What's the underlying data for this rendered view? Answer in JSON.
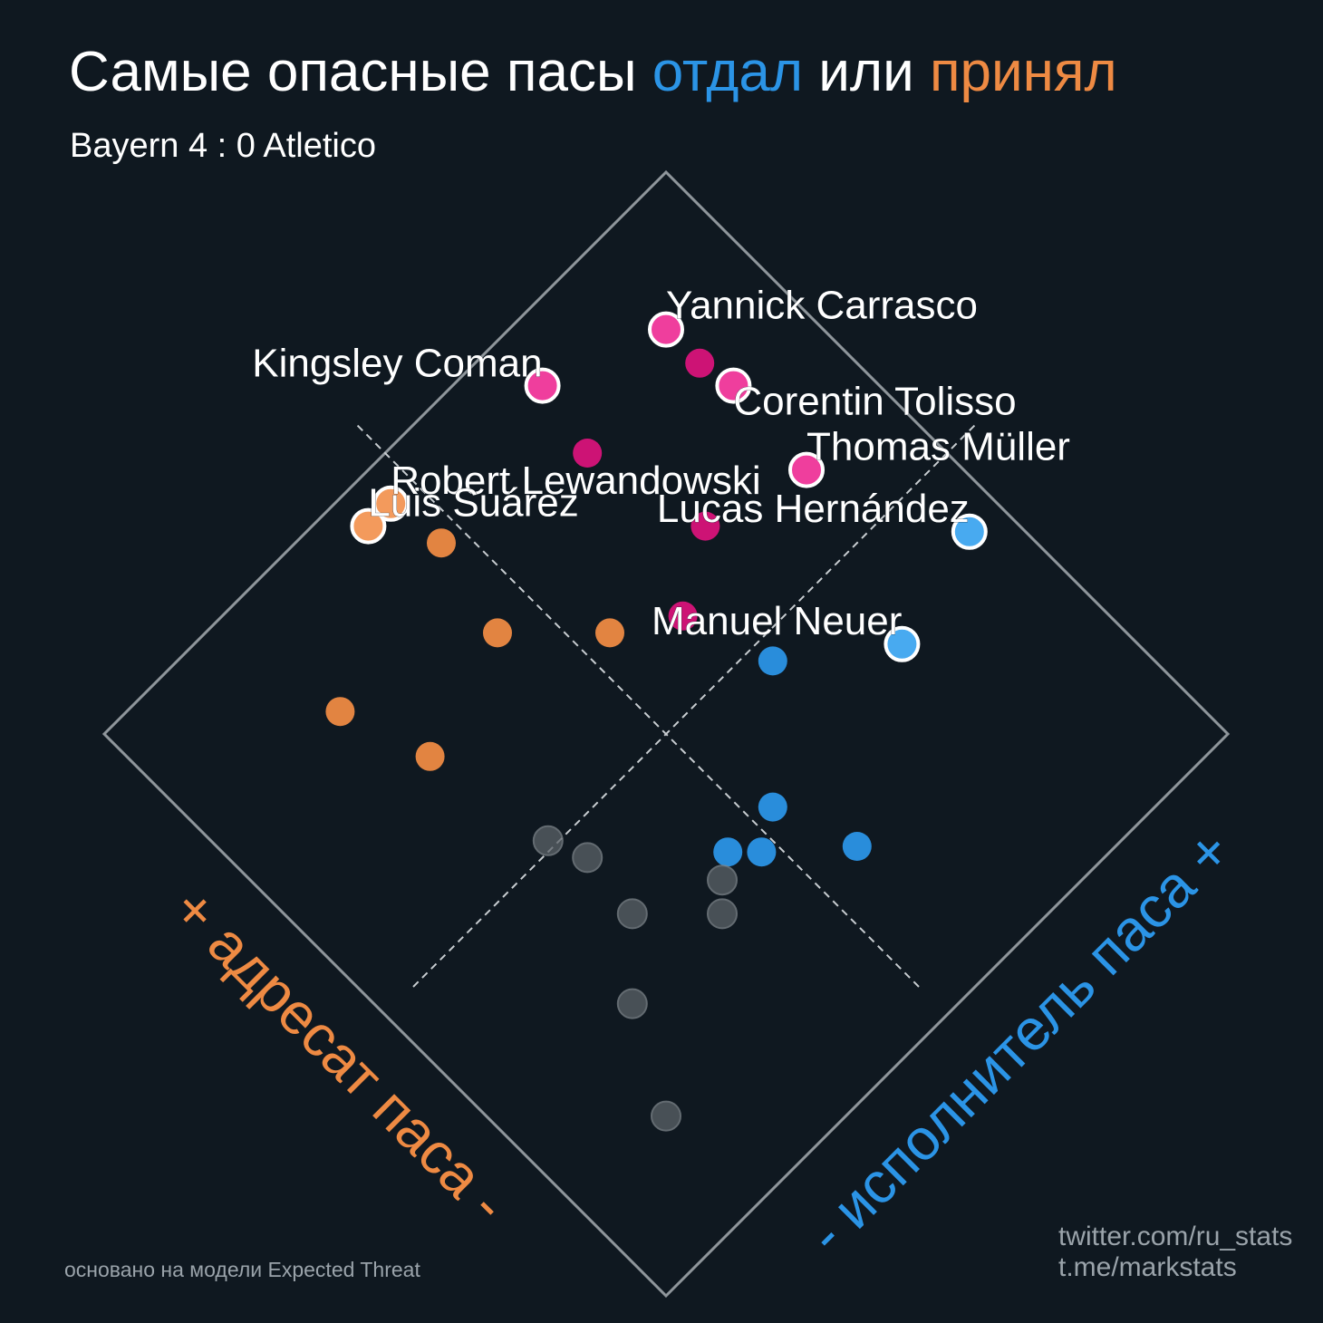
{
  "header": {
    "title_part1": "Самые опасные пасы ",
    "title_blue": "отдал",
    "title_part2": " или ",
    "title_orange": "принял",
    "subtitle": "Bayern 4 : 0 Atletico"
  },
  "footer": {
    "note": "основано на модели Expected Threat",
    "credit_line1": "twitter.com/ru_stats",
    "credit_line2": "t.me/markstats"
  },
  "colors": {
    "background": "#0f1820",
    "passer": "#2b94e6",
    "receiver": "#ee8a43",
    "both": "#d8137a",
    "neutral": "#5c6369",
    "frame": "#8f969b"
  },
  "chart_data": {
    "type": "scatter",
    "title": "Самые опасные пасы отдал или принял",
    "subtitle": "Bayern 4 : 0 Atletico",
    "rotated_45_degrees": true,
    "axes": {
      "receiver_axis_label": "+ адресат паса -",
      "passer_axis_label": "- исполнитель паса +",
      "range": [
        0,
        1
      ],
      "quadrant_dividers": "dashed at midpoint"
    },
    "groups": [
      "both",
      "passer",
      "receiver",
      "neutral"
    ],
    "points": [
      {
        "name": "Yannick Carrasco",
        "group": "both",
        "passer": 0.86,
        "receiver": 0.86,
        "highlight": true
      },
      {
        "name": "Kingsley Coman",
        "group": "both",
        "passer": 0.7,
        "receiver": 0.92,
        "highlight": true
      },
      {
        "name": "Corentin Tolisso",
        "group": "both",
        "passer": 0.87,
        "receiver": 0.75,
        "highlight": true
      },
      {
        "name": "Thomas Müller",
        "group": "both",
        "passer": 0.86,
        "receiver": 0.61,
        "highlight": true
      },
      {
        "name": "",
        "group": "both",
        "passer": 0.86,
        "receiver": 0.8
      },
      {
        "name": "",
        "group": "both",
        "passer": 0.68,
        "receiver": 0.82
      },
      {
        "name": "",
        "group": "both",
        "passer": 0.72,
        "receiver": 0.65
      },
      {
        "name": "",
        "group": "both",
        "passer": 0.62,
        "receiver": 0.59
      },
      {
        "name": "Lucas Hernández",
        "group": "passer",
        "passer": 0.95,
        "receiver": 0.41,
        "highlight": true
      },
      {
        "name": "Manuel Neuer",
        "group": "passer",
        "passer": 0.79,
        "receiver": 0.37,
        "highlight": true
      },
      {
        "name": "",
        "group": "passer",
        "passer": 0.66,
        "receiver": 0.47
      },
      {
        "name": "",
        "group": "passer",
        "passer": 0.53,
        "receiver": 0.34
      },
      {
        "name": "",
        "group": "passer",
        "passer": 0.48,
        "receiver": 0.31
      },
      {
        "name": "",
        "group": "passer",
        "passer": 0.45,
        "receiver": 0.34
      },
      {
        "name": "",
        "group": "passer",
        "passer": 0.57,
        "receiver": 0.23
      },
      {
        "name": "Robert Lewandowski",
        "group": "receiver",
        "passer": 0.46,
        "receiver": 0.95,
        "highlight": true
      },
      {
        "name": "Luis Suárez",
        "group": "receiver",
        "passer": 0.42,
        "receiver": 0.95,
        "highlight": true
      },
      {
        "name": "",
        "group": "receiver",
        "passer": 0.47,
        "receiver": 0.87
      },
      {
        "name": "",
        "group": "receiver",
        "passer": 0.54,
        "receiver": 0.64
      },
      {
        "name": "",
        "group": "receiver",
        "passer": 0.44,
        "receiver": 0.74
      },
      {
        "name": "",
        "group": "receiver",
        "passer": 0.27,
        "receiver": 0.69
      },
      {
        "name": "",
        "group": "receiver",
        "passer": 0.23,
        "receiver": 0.81
      },
      {
        "name": "",
        "group": "neutral",
        "passer": 0.42,
        "receiver": 0.32
      },
      {
        "name": "",
        "group": "neutral",
        "passer": 0.39,
        "receiver": 0.29
      },
      {
        "name": "",
        "group": "neutral",
        "passer": 0.31,
        "receiver": 0.37
      },
      {
        "name": "",
        "group": "neutral",
        "passer": 0.32,
        "receiver": 0.46
      },
      {
        "name": "",
        "group": "neutral",
        "passer": 0.3,
        "receiver": 0.51
      },
      {
        "name": "",
        "group": "neutral",
        "passer": 0.23,
        "receiver": 0.29
      },
      {
        "name": "",
        "group": "neutral",
        "passer": 0.16,
        "receiver": 0.16
      }
    ]
  }
}
